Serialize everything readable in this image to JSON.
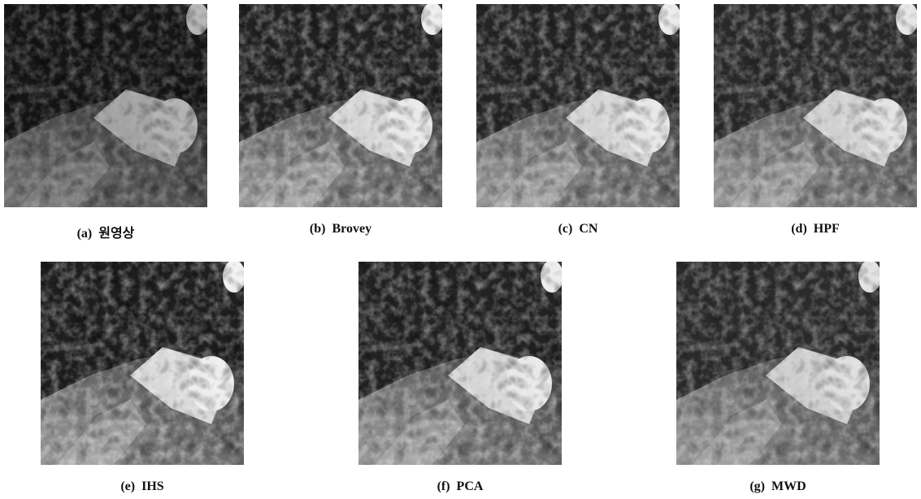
{
  "figures": [
    {
      "label": "(a)",
      "caption": "원영상"
    },
    {
      "label": "(b)",
      "caption": "Brovey"
    },
    {
      "label": "(c)",
      "caption": "CN"
    },
    {
      "label": "(d)",
      "caption": "HPF"
    },
    {
      "label": "(e)",
      "caption": "IHS"
    },
    {
      "label": "(f)",
      "caption": "PCA"
    },
    {
      "label": "(g)",
      "caption": "MWD"
    }
  ]
}
